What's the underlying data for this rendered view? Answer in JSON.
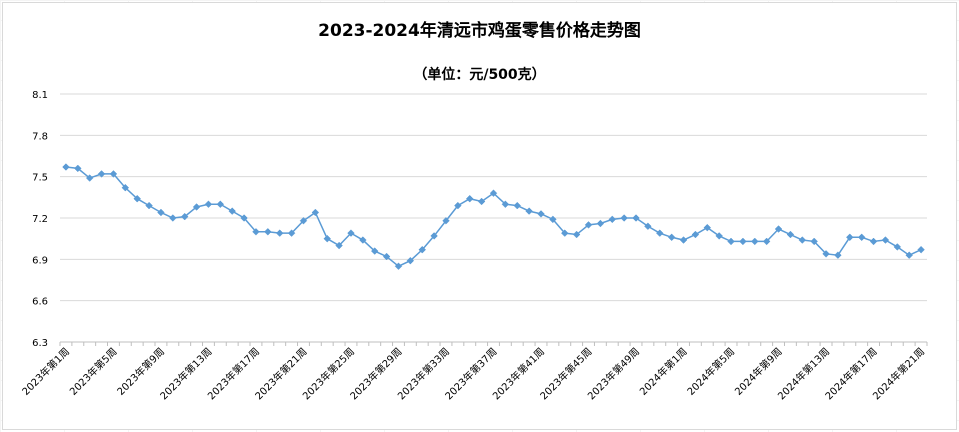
{
  "chart_data": {
    "type": "line",
    "title": "2023-2024年清远市鸡蛋零售价格走势图",
    "subtitle": "（单位：元/500克）",
    "xlabel": "",
    "ylabel": "",
    "ylim": [
      6.3,
      8.1
    ],
    "yticks": [
      "8.1",
      "7.8",
      "7.5",
      "7.2",
      "6.9",
      "6.6",
      "6.3"
    ],
    "grid": "horizontal",
    "legend": "none",
    "line_color": "#5b9bd5",
    "marker": "diamond",
    "x": [
      "2023年第1周",
      "2023年第2周",
      "2023年第3周",
      "2023年第4周",
      "2023年第5周",
      "2023年第6周",
      "2023年第7周",
      "2023年第8周",
      "2023年第9周",
      "2023年第10周",
      "2023年第11周",
      "2023年第12周",
      "2023年第13周",
      "2023年第14周",
      "2023年第15周",
      "2023年第16周",
      "2023年第17周",
      "2023年第18周",
      "2023年第19周",
      "2023年第20周",
      "2023年第21周",
      "2023年第22周",
      "2023年第23周",
      "2023年第24周",
      "2023年第25周",
      "2023年第26周",
      "2023年第27周",
      "2023年第28周",
      "2023年第29周",
      "2023年第30周",
      "2023年第31周",
      "2023年第32周",
      "2023年第33周",
      "2023年第34周",
      "2023年第35周",
      "2023年第36周",
      "2023年第37周",
      "2023年第38周",
      "2023年第39周",
      "2023年第40周",
      "2023年第41周",
      "2023年第42周",
      "2023年第43周",
      "2023年第44周",
      "2023年第45周",
      "2023年第46周",
      "2023年第47周",
      "2023年第48周",
      "2023年第49周",
      "2023年第50周",
      "2023年第51周",
      "2023年第52周",
      "2024年第1周",
      "2024年第2周",
      "2024年第3周",
      "2024年第4周",
      "2024年第5周",
      "2024年第6周",
      "2024年第7周",
      "2024年第8周",
      "2024年第9周",
      "2024年第10周",
      "2024年第11周",
      "2024年第12周",
      "2024年第13周",
      "2024年第14周",
      "2024年第15周",
      "2024年第16周",
      "2024年第17周",
      "2024年第18周",
      "2024年第19周",
      "2024年第20周",
      "2024年第21周"
    ],
    "x_tick_labels": [
      {
        "index": 0,
        "label": "2023年第1周"
      },
      {
        "index": 4,
        "label": "2023年第5周"
      },
      {
        "index": 8,
        "label": "2023年第9周"
      },
      {
        "index": 12,
        "label": "2023年第13周"
      },
      {
        "index": 16,
        "label": "2023年第17周"
      },
      {
        "index": 20,
        "label": "2023年第21周"
      },
      {
        "index": 24,
        "label": "2023年第25周"
      },
      {
        "index": 28,
        "label": "2023年第29周"
      },
      {
        "index": 32,
        "label": "2023年第33周"
      },
      {
        "index": 36,
        "label": "2023年第37周"
      },
      {
        "index": 40,
        "label": "2023年第41周"
      },
      {
        "index": 44,
        "label": "2023年第45周"
      },
      {
        "index": 48,
        "label": "2023年第49周"
      },
      {
        "index": 52,
        "label": "2024年第1周"
      },
      {
        "index": 56,
        "label": "2024年第5周"
      },
      {
        "index": 60,
        "label": "2024年第9周"
      },
      {
        "index": 64,
        "label": "2024年第13周"
      },
      {
        "index": 68,
        "label": "2024年第17周"
      },
      {
        "index": 72,
        "label": "2024年第21周"
      }
    ],
    "series": [
      {
        "name": "",
        "values": [
          7.57,
          7.56,
          7.49,
          7.52,
          7.52,
          7.42,
          7.34,
          7.29,
          7.24,
          7.2,
          7.21,
          7.28,
          7.3,
          7.3,
          7.25,
          7.2,
          7.1,
          7.1,
          7.09,
          7.09,
          7.18,
          7.24,
          7.05,
          7.0,
          7.09,
          7.04,
          6.96,
          6.92,
          6.85,
          6.89,
          6.97,
          7.07,
          7.18,
          7.29,
          7.34,
          7.32,
          7.38,
          7.3,
          7.29,
          7.25,
          7.23,
          7.19,
          7.09,
          7.08,
          7.15,
          7.16,
          7.19,
          7.2,
          7.2,
          7.14,
          7.09,
          7.06,
          7.04,
          7.08,
          7.13,
          7.07,
          7.03,
          7.03,
          7.03,
          7.03,
          7.12,
          7.08,
          7.04,
          7.03,
          6.94,
          6.93,
          7.06,
          7.06,
          7.03,
          7.04,
          6.99,
          6.93,
          6.97
        ]
      }
    ]
  }
}
